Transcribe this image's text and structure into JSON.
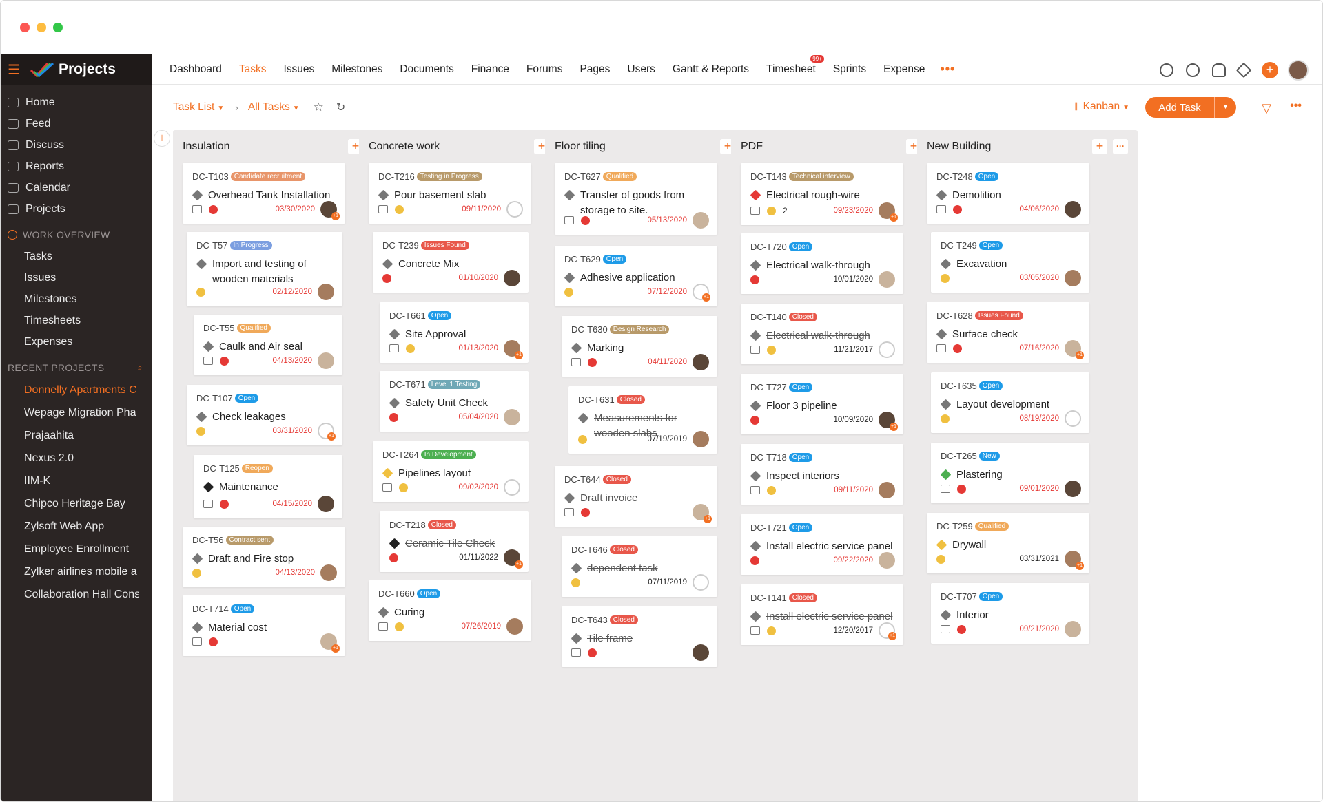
{
  "app_name": "Projects",
  "colors": {
    "accent": "#f26f22",
    "sidebar_bg": "#2b2524",
    "danger": "#e53935"
  },
  "sidebar": {
    "nav": [
      {
        "label": "Home",
        "icon": "home-icon"
      },
      {
        "label": "Feed",
        "icon": "feed-icon"
      },
      {
        "label": "Discuss",
        "icon": "discuss-icon"
      },
      {
        "label": "Reports",
        "icon": "reports-icon"
      },
      {
        "label": "Calendar",
        "icon": "calendar-icon"
      },
      {
        "label": "Projects",
        "icon": "projects-icon"
      }
    ],
    "work_overview_title": "WORK OVERVIEW",
    "work_overview": [
      "Tasks",
      "Issues",
      "Milestones",
      "Timesheets",
      "Expenses"
    ],
    "recent_title": "RECENT PROJECTS",
    "recent_projects": [
      "Donnelly Apartments C",
      "Wepage Migration Pha",
      "Prajaahita",
      "Nexus 2.0",
      "IIM-K",
      "Chipco Heritage Bay",
      "Zylsoft Web App",
      "Employee Enrollment",
      "Zylker airlines mobile a",
      "Collaboration Hall Cons"
    ]
  },
  "topnav": {
    "items": [
      "Dashboard",
      "Tasks",
      "Issues",
      "Milestones",
      "Documents",
      "Finance",
      "Forums",
      "Pages",
      "Users",
      "Gantt & Reports",
      "Timesheet",
      "Sprints",
      "Expense"
    ],
    "active": "Tasks",
    "timesheet_badge": "99+",
    "more": "•••"
  },
  "toolbar": {
    "task_list": "Task List",
    "all_tasks": "All Tasks",
    "view": "Kanban",
    "add_task": "Add Task"
  },
  "columns": [
    {
      "title": "Insulation",
      "cards": [
        {
          "id": "DC-T103",
          "status": "Candidate recruitment",
          "status_color": "#e8956a",
          "title": "Overhead Tank Installation",
          "date": "03/30/2020"
        },
        {
          "id": "DC-T57",
          "status": "In Progress",
          "status_color": "#7b9ee0",
          "title": "Import and testing of wooden materials",
          "date": "02/12/2020"
        },
        {
          "id": "DC-T55",
          "status": "Qualified",
          "status_color": "#f0a95a",
          "title": "Caulk and Air seal",
          "date": "04/13/2020"
        },
        {
          "id": "DC-T107",
          "status": "Open",
          "status_color": "#1e9be8",
          "title": "Check leakages",
          "date": "03/31/2020"
        },
        {
          "id": "DC-T125",
          "status": "Reopen",
          "status_color": "#f0a95a",
          "title": "Maintenance",
          "date": "04/15/2020"
        },
        {
          "id": "DC-T56",
          "status": "Contract sent",
          "status_color": "#b89a6a",
          "title": "Draft and Fire stop",
          "date": "04/13/2020"
        },
        {
          "id": "DC-T714",
          "status": "Open",
          "status_color": "#1e9be8",
          "title": "Material cost",
          "date": ""
        }
      ]
    },
    {
      "title": "Concrete work",
      "cards": [
        {
          "id": "DC-T216",
          "status": "Testing in Progress",
          "status_color": "#b89a6a",
          "title": "Pour basement slab",
          "date": "09/11/2020"
        },
        {
          "id": "DC-T239",
          "status": "Issues Found",
          "status_color": "#e8574a",
          "title": "Concrete Mix",
          "date": "01/10/2020"
        },
        {
          "id": "DC-T661",
          "status": "Open",
          "status_color": "#1e9be8",
          "title": "Site Approval",
          "date": "01/13/2020"
        },
        {
          "id": "DC-T671",
          "status": "Level 1 Testing",
          "status_color": "#6fa8b6",
          "title": "Safety Unit Check",
          "date": "05/04/2020"
        },
        {
          "id": "DC-T264",
          "status": "In Development",
          "status_color": "#4caf50",
          "title": "Pipelines layout",
          "date": "09/02/2020"
        },
        {
          "id": "DC-T218",
          "status": "Closed",
          "status_color": "#e8574a",
          "title": "Ceramic Tile Check",
          "date": "01/11/2022"
        },
        {
          "id": "DC-T660",
          "status": "Open",
          "status_color": "#1e9be8",
          "title": "Curing",
          "date": "07/26/2019"
        }
      ]
    },
    {
      "title": "Floor tiling",
      "cards": [
        {
          "id": "DC-T627",
          "status": "Qualified",
          "status_color": "#f0a95a",
          "title": "Transfer of goods from storage to site.",
          "date": "05/13/2020"
        },
        {
          "id": "DC-T629",
          "status": "Open",
          "status_color": "#1e9be8",
          "title": "Adhesive application",
          "date": "07/12/2020"
        },
        {
          "id": "DC-T630",
          "status": "Design Research",
          "status_color": "#b89a6a",
          "title": "Marking",
          "date": "04/11/2020"
        },
        {
          "id": "DC-T631",
          "status": "Closed",
          "status_color": "#e8574a",
          "title": "Measurements for wooden slabs",
          "date": "07/19/2019"
        },
        {
          "id": "DC-T644",
          "status": "Closed",
          "status_color": "#e8574a",
          "title": "Draft invoice",
          "date": ""
        },
        {
          "id": "DC-T646",
          "status": "Closed",
          "status_color": "#e8574a",
          "title": "dependent task",
          "date": "07/11/2019"
        },
        {
          "id": "DC-T643",
          "status": "Closed",
          "status_color": "#e8574a",
          "title": "Tile frame",
          "date": ""
        }
      ]
    },
    {
      "title": "PDF",
      "cards": [
        {
          "id": "DC-T143",
          "status": "Technical interview",
          "status_color": "#b89a6a",
          "title": "Electrical rough-wire",
          "date": "09/23/2020",
          "tags": "2"
        },
        {
          "id": "DC-T720",
          "status": "Open",
          "status_color": "#1e9be8",
          "title": "Electrical walk-through",
          "date": "10/01/2020"
        },
        {
          "id": "DC-T140",
          "status": "Closed",
          "status_color": "#e8574a",
          "title": "Electrical walk-through",
          "date": "11/21/2017"
        },
        {
          "id": "DC-T727",
          "status": "Open",
          "status_color": "#1e9be8",
          "title": "Floor 3 pipeline",
          "date": "10/09/2020"
        },
        {
          "id": "DC-T718",
          "status": "Open",
          "status_color": "#1e9be8",
          "title": "Inspect interiors",
          "date": "09/11/2020"
        },
        {
          "id": "DC-T721",
          "status": "Open",
          "status_color": "#1e9be8",
          "title": "Install electric service panel",
          "date": "09/22/2020"
        },
        {
          "id": "DC-T141",
          "status": "Closed",
          "status_color": "#e8574a",
          "title": "Install electric service panel",
          "date": "12/20/2017"
        }
      ]
    },
    {
      "title": "New Building",
      "cards": [
        {
          "id": "DC-T248",
          "status": "Open",
          "status_color": "#1e9be8",
          "title": "Demolition",
          "date": "04/06/2020"
        },
        {
          "id": "DC-T249",
          "status": "Open",
          "status_color": "#1e9be8",
          "title": "Excavation",
          "date": "03/05/2020"
        },
        {
          "id": "DC-T628",
          "status": "Issues Found",
          "status_color": "#e8574a",
          "title": "Surface check",
          "date": "07/16/2020"
        },
        {
          "id": "DC-T635",
          "status": "Open",
          "status_color": "#1e9be8",
          "title": "Layout development",
          "date": "08/19/2020"
        },
        {
          "id": "DC-T265",
          "status": "New",
          "status_color": "#1e9be8",
          "title": "Plastering",
          "date": "09/01/2020"
        },
        {
          "id": "DC-T259",
          "status": "Qualified",
          "status_color": "#f0a95a",
          "title": "Drywall",
          "date": "03/31/2021"
        },
        {
          "id": "DC-T707",
          "status": "Open",
          "status_color": "#1e9be8",
          "title": "Interior",
          "date": "09/21/2020"
        }
      ]
    }
  ]
}
